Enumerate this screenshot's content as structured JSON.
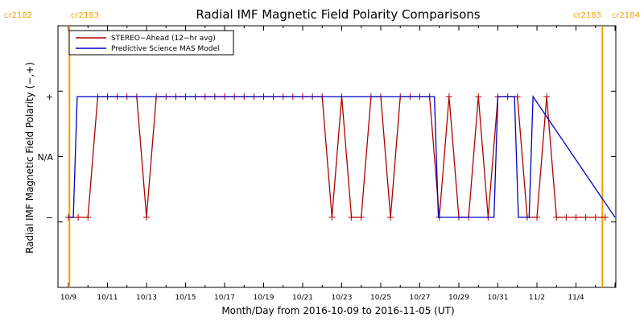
{
  "chart_data": {
    "type": "line",
    "title": "Radial IMF Magnetic Field Polarity Comparisons",
    "xlabel": "Month/Day from 2016-10-09 to 2016-11-05 (UT)",
    "ylabel": "Radial IMF Magnetic Field Polarity (−,+)",
    "y_categories": [
      "−",
      "N/A",
      "+"
    ],
    "y_values_map": {
      "-1": "−",
      "0": "N/A",
      "1": "+"
    },
    "ylim": [
      -1.5,
      1.5
    ],
    "xlim_days": [
      0,
      28
    ],
    "x_tick_labels": [
      "10/9",
      "10/11",
      "10/13",
      "10/15",
      "10/17",
      "10/19",
      "10/21",
      "10/23",
      "10/25",
      "10/27",
      "10/29",
      "10/31",
      "11/2",
      "11/4"
    ],
    "carrington_markers": [
      {
        "label_left": "cr2182",
        "label_right": "cr2183",
        "x": 0.05
      },
      {
        "label_left": "cr2183",
        "label_right": "cr2184",
        "x": 27.35
      }
    ],
    "legend_position": "top-left",
    "series": [
      {
        "name": "STEREO−Ahead (12−hr avg)",
        "color": "#b00000",
        "markers": "plus",
        "x": [
          0,
          0.5,
          1,
          1.5,
          2,
          2.5,
          3,
          3.5,
          4,
          4.5,
          5,
          5.5,
          6,
          6.5,
          7,
          7.5,
          8,
          8.5,
          9,
          9.5,
          10,
          10.5,
          11,
          11.5,
          12,
          12.5,
          13,
          13.5,
          14,
          14.5,
          15,
          15.5,
          16,
          16.5,
          17,
          17.5,
          18,
          18.5,
          19,
          19.5,
          20,
          20.5,
          21,
          21.5,
          22,
          22.5,
          23,
          23.5,
          24,
          24.5,
          25,
          25.5,
          26,
          26.5,
          27,
          27.5
        ],
        "y": [
          -1,
          -1,
          -1,
          1,
          1,
          1,
          1,
          1,
          -1,
          1,
          1,
          1,
          1,
          1,
          1,
          1,
          1,
          1,
          1,
          1,
          1,
          1,
          1,
          1,
          1,
          1,
          1,
          -1,
          1,
          -1,
          -1,
          1,
          1,
          -1,
          1,
          1,
          1,
          1,
          -1,
          1,
          -1,
          -1,
          1,
          -1,
          1,
          1,
          1,
          -1,
          -1,
          1,
          -1,
          -1,
          -1,
          -1,
          -1,
          -1
        ]
      },
      {
        "name": "Predictive Science MAS Model",
        "color": "#0000c8",
        "markers": "none",
        "x": [
          0,
          0.25,
          0.45,
          18.75,
          18.95,
          21.8,
          22.0,
          22.85,
          23.05,
          23.6,
          23.8,
          28
        ],
        "y": [
          -1,
          -1,
          1,
          1,
          -1,
          -1,
          1,
          1,
          -1,
          -1,
          1,
          -1
        ]
      }
    ]
  }
}
